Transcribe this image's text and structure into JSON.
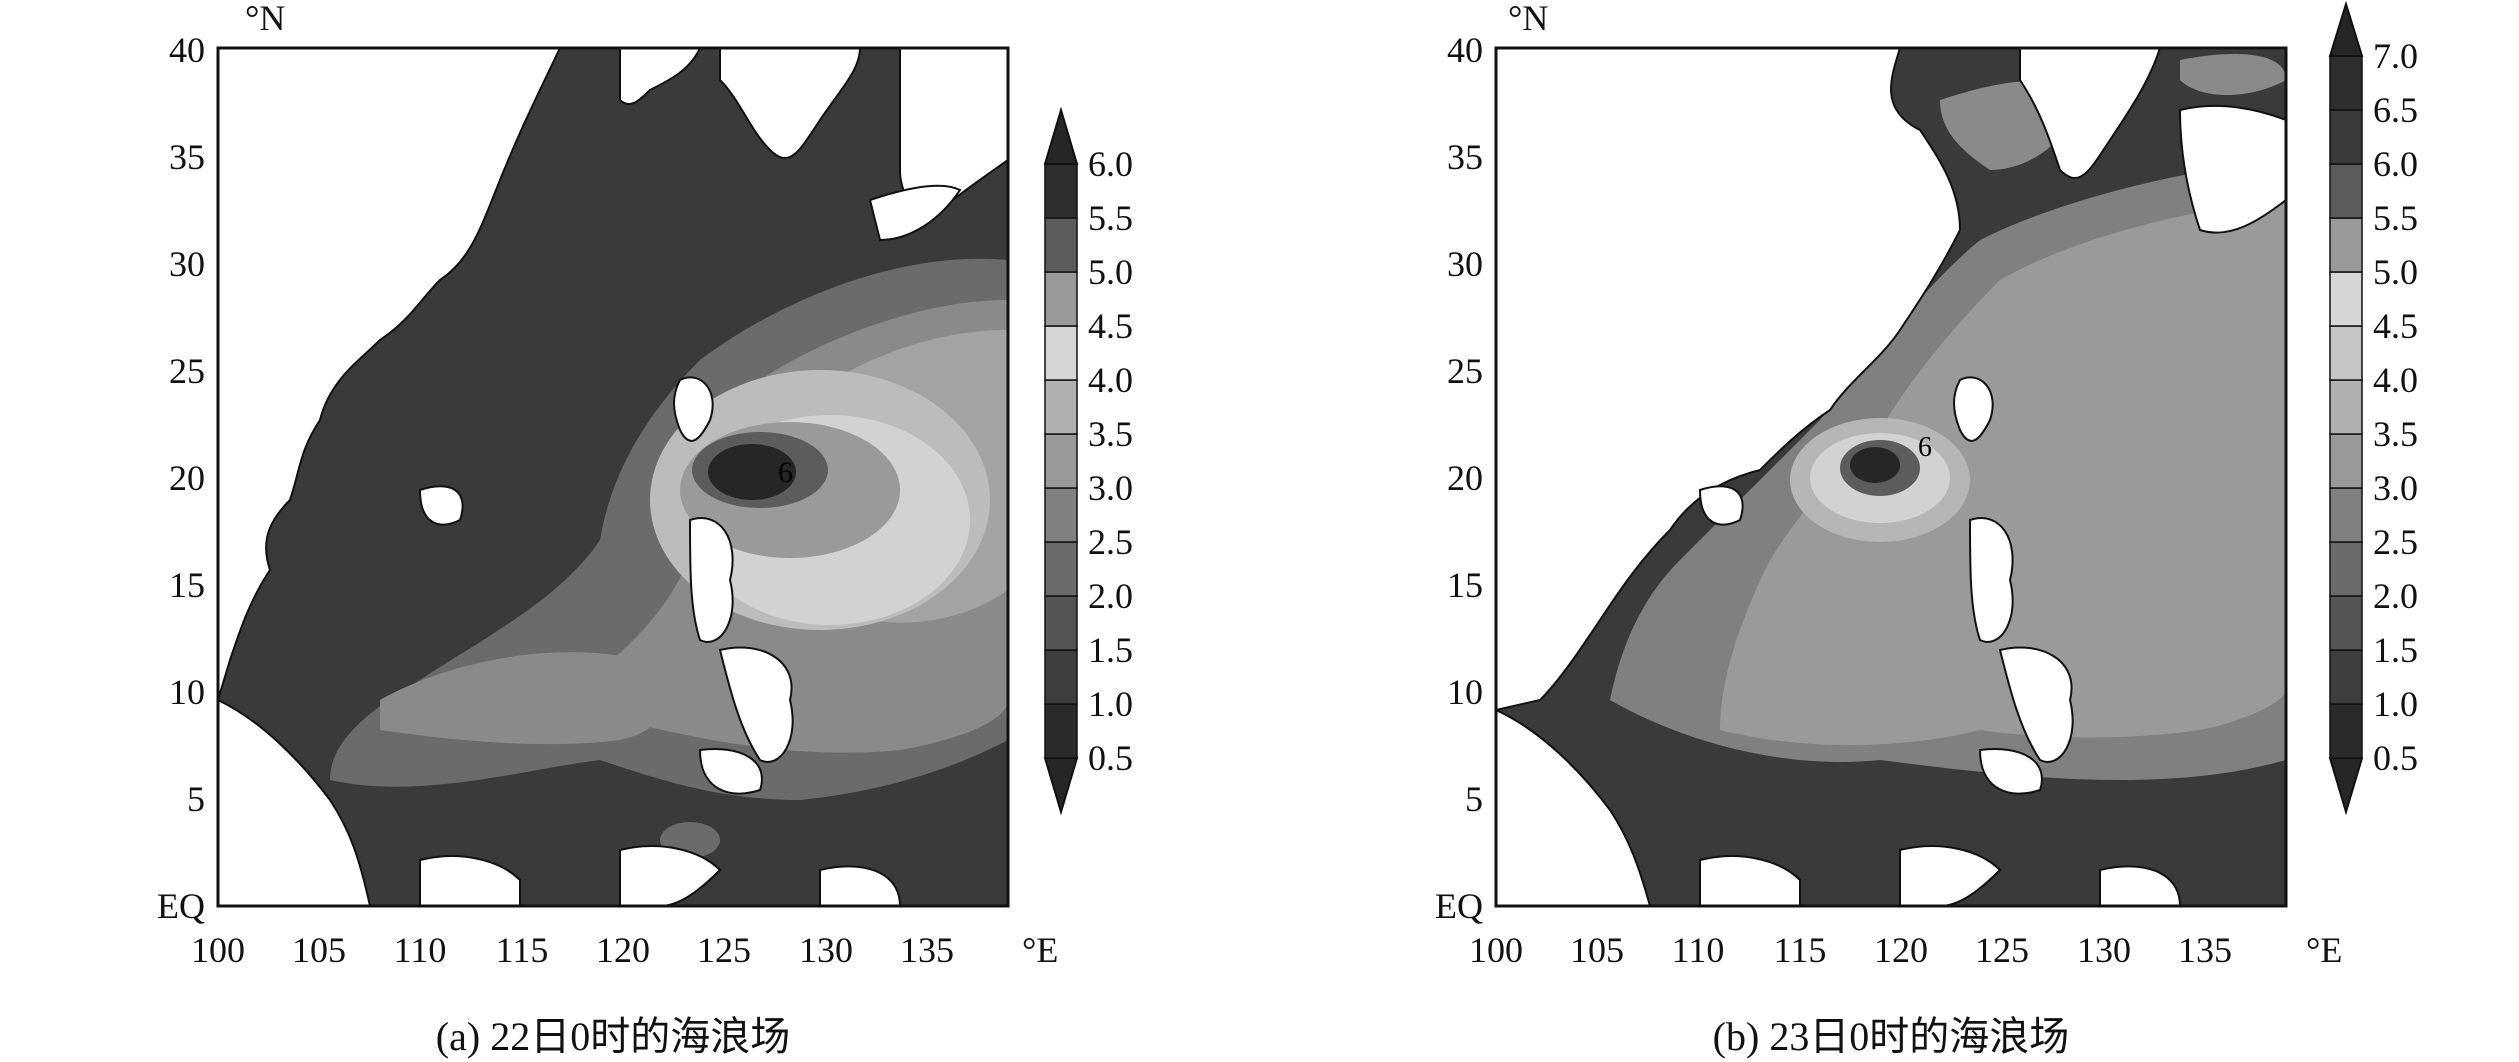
{
  "panels": [
    {
      "caption": "(a) 22日0时的海浪场",
      "lat_unit": "°N",
      "lon_unit": "°E",
      "lat_ticks": [
        "EQ",
        "5",
        "10",
        "15",
        "20",
        "25",
        "30",
        "35",
        "40"
      ],
      "lon_ticks": [
        "100",
        "105",
        "110",
        "115",
        "120",
        "125",
        "130",
        "135"
      ],
      "colorbar_labels": [
        "0.5",
        "1.0",
        "1.5",
        "2.0",
        "2.5",
        "3.0",
        "3.5",
        "4.0",
        "4.5",
        "5.0",
        "5.5",
        "6.0"
      ],
      "contour_label": "6"
    },
    {
      "caption": "(b) 23日0时的海浪场",
      "lat_unit": "°N",
      "lon_unit": "°E",
      "lat_ticks": [
        "EQ",
        "5",
        "10",
        "15",
        "20",
        "25",
        "30",
        "35",
        "40"
      ],
      "lon_ticks": [
        "100",
        "105",
        "110",
        "115",
        "120",
        "125",
        "130",
        "135"
      ],
      "colorbar_labels": [
        "0.5",
        "1.0",
        "1.5",
        "2.0",
        "2.5",
        "3.0",
        "3.5",
        "4.0",
        "4.5",
        "5.0",
        "5.5",
        "6.0",
        "6.5",
        "7.0"
      ],
      "contour_label": "6"
    }
  ],
  "map_extent": {
    "lon_min": 100,
    "lon_max": 139,
    "lat_min": 0,
    "lat_max": 40
  },
  "colors": {
    "land": "#ffffff",
    "coast": "#111111",
    "ramp": [
      "#2a2a2a",
      "#3e3e3e",
      "#555555",
      "#6b6b6b",
      "#808080",
      "#999999",
      "#b0b0b0",
      "#c6c6c6",
      "#d6d6d6",
      "#9a9a9a",
      "#5c5c5c",
      "#3a3a3a",
      "#2e2e2e",
      "#262626"
    ]
  }
}
